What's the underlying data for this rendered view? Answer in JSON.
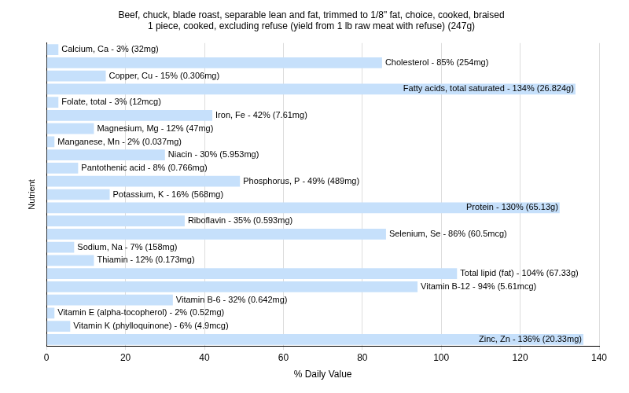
{
  "chart_data": {
    "type": "bar",
    "title": [
      "Beef, chuck, blade roast, separable lean and fat, trimmed to 1/8\" fat, choice, cooked, braised",
      "1 piece, cooked, excluding refuse (yield from 1 lb raw meat with refuse) (247g)"
    ],
    "x_label": "% Daily Value",
    "y_label": "Nutrient",
    "orientation": "horizontal",
    "categories": [
      "Calcium, Ca - 3% (32mg)",
      "Cholesterol - 85% (254mg)",
      "Copper, Cu - 15% (0.306mg)",
      "Fatty acids, total saturated - 134% (26.824g)",
      "Folate, total - 3% (12mcg)",
      "Iron, Fe - 42% (7.61mg)",
      "Magnesium, Mg - 12% (47mg)",
      "Manganese, Mn - 2% (0.037mg)",
      "Niacin - 30% (5.953mg)",
      "Pantothenic acid - 8% (0.766mg)",
      "Phosphorus, P - 49% (489mg)",
      "Potassium, K - 16% (568mg)",
      "Protein - 130% (65.13g)",
      "Riboflavin - 35% (0.593mg)",
      "Selenium, Se - 86% (60.5mcg)",
      "Sodium, Na - 7% (158mg)",
      "Thiamin - 12% (0.173mg)",
      "Total lipid (fat) - 104% (67.33g)",
      "Vitamin B-12 - 94% (5.61mcg)",
      "Vitamin B-6 - 32% (0.642mg)",
      "Vitamin E (alpha-tocopherol) - 2% (0.52mg)",
      "Vitamin K (phylloquinone) - 6% (4.9mcg)",
      "Zinc, Zn - 136% (20.33mg)"
    ],
    "values": [
      3,
      85,
      15,
      134,
      3,
      42,
      12,
      2,
      30,
      8,
      49,
      16,
      130,
      35,
      86,
      7,
      12,
      104,
      94,
      32,
      2,
      6,
      136
    ],
    "color": "#c6e0fb",
    "xlim": [
      0,
      140
    ],
    "xticks": [
      0,
      20,
      40,
      60,
      80,
      100,
      120,
      140
    ],
    "grid": true,
    "tick_labels": "x"
  }
}
